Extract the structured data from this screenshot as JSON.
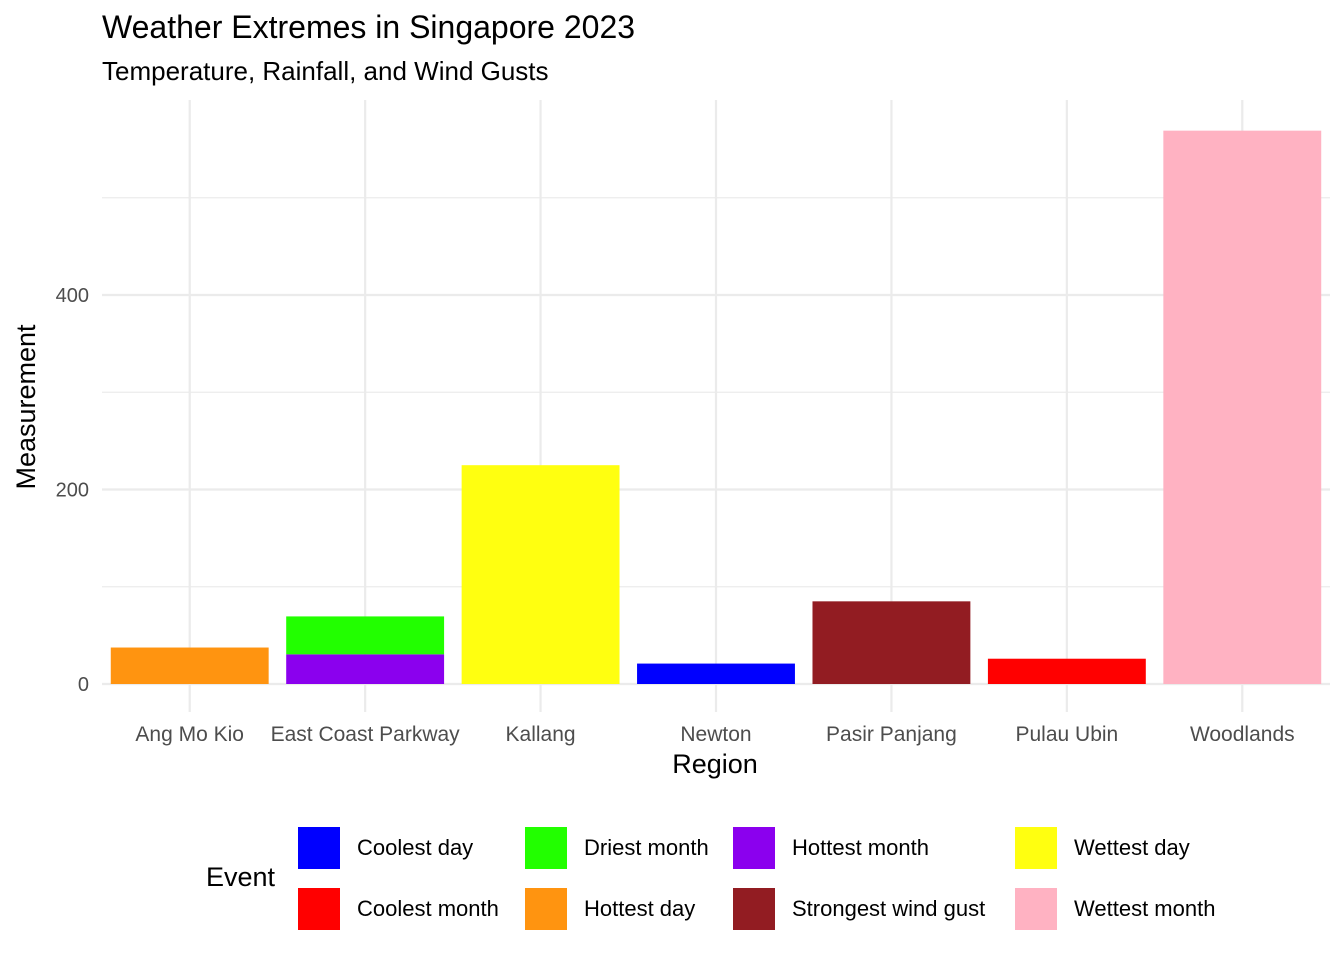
{
  "chart_data": {
    "type": "bar",
    "stacked": true,
    "title": "Weather Extremes in Singapore 2023",
    "subtitle": "Temperature, Rainfall, and Wind Gusts",
    "xlabel": "Region",
    "ylabel": "Measurement",
    "categories": [
      "Ang Mo Kio",
      "East Coast Parkway",
      "Kallang",
      "Newton",
      "Pasir Panjang",
      "Pulau Ubin",
      "Woodlands"
    ],
    "ylim": [
      -10,
      600
    ],
    "yticks": [
      0,
      200,
      400
    ],
    "grid": true,
    "legend": {
      "title": "Event",
      "position": "bottom"
    },
    "series": [
      {
        "name": "Coolest day",
        "color": "#0000FF",
        "values": [
          0,
          0,
          0,
          21,
          0,
          0,
          0
        ]
      },
      {
        "name": "Coolest month",
        "color": "#FF0000",
        "values": [
          0,
          0,
          0,
          0,
          0,
          26,
          0
        ]
      },
      {
        "name": "Driest month",
        "color": "#22FF00",
        "values": [
          0,
          39,
          0,
          0,
          0,
          0,
          0
        ]
      },
      {
        "name": "Hottest day",
        "color": "#FF9410",
        "values": [
          37.5,
          0,
          0,
          0,
          0,
          0,
          0
        ]
      },
      {
        "name": "Hottest month",
        "color": "#8B00EE",
        "values": [
          0,
          30.5,
          0,
          0,
          0,
          0,
          0
        ]
      },
      {
        "name": "Strongest wind gust",
        "color": "#921C22",
        "values": [
          0,
          0,
          0,
          0,
          85,
          0,
          0
        ]
      },
      {
        "name": "Wettest day",
        "color": "#FFFF10",
        "values": [
          0,
          0,
          225,
          0,
          0,
          0,
          0
        ]
      },
      {
        "name": "Wettest month",
        "color": "#FFB2C2",
        "values": [
          0,
          0,
          0,
          0,
          0,
          0,
          569
        ]
      }
    ],
    "stack_order_bottom_to_top": [
      "Wettest month",
      "Wettest day",
      "Strongest wind gust",
      "Hottest month",
      "Hottest day",
      "Driest month",
      "Coolest month",
      "Coolest day"
    ]
  }
}
